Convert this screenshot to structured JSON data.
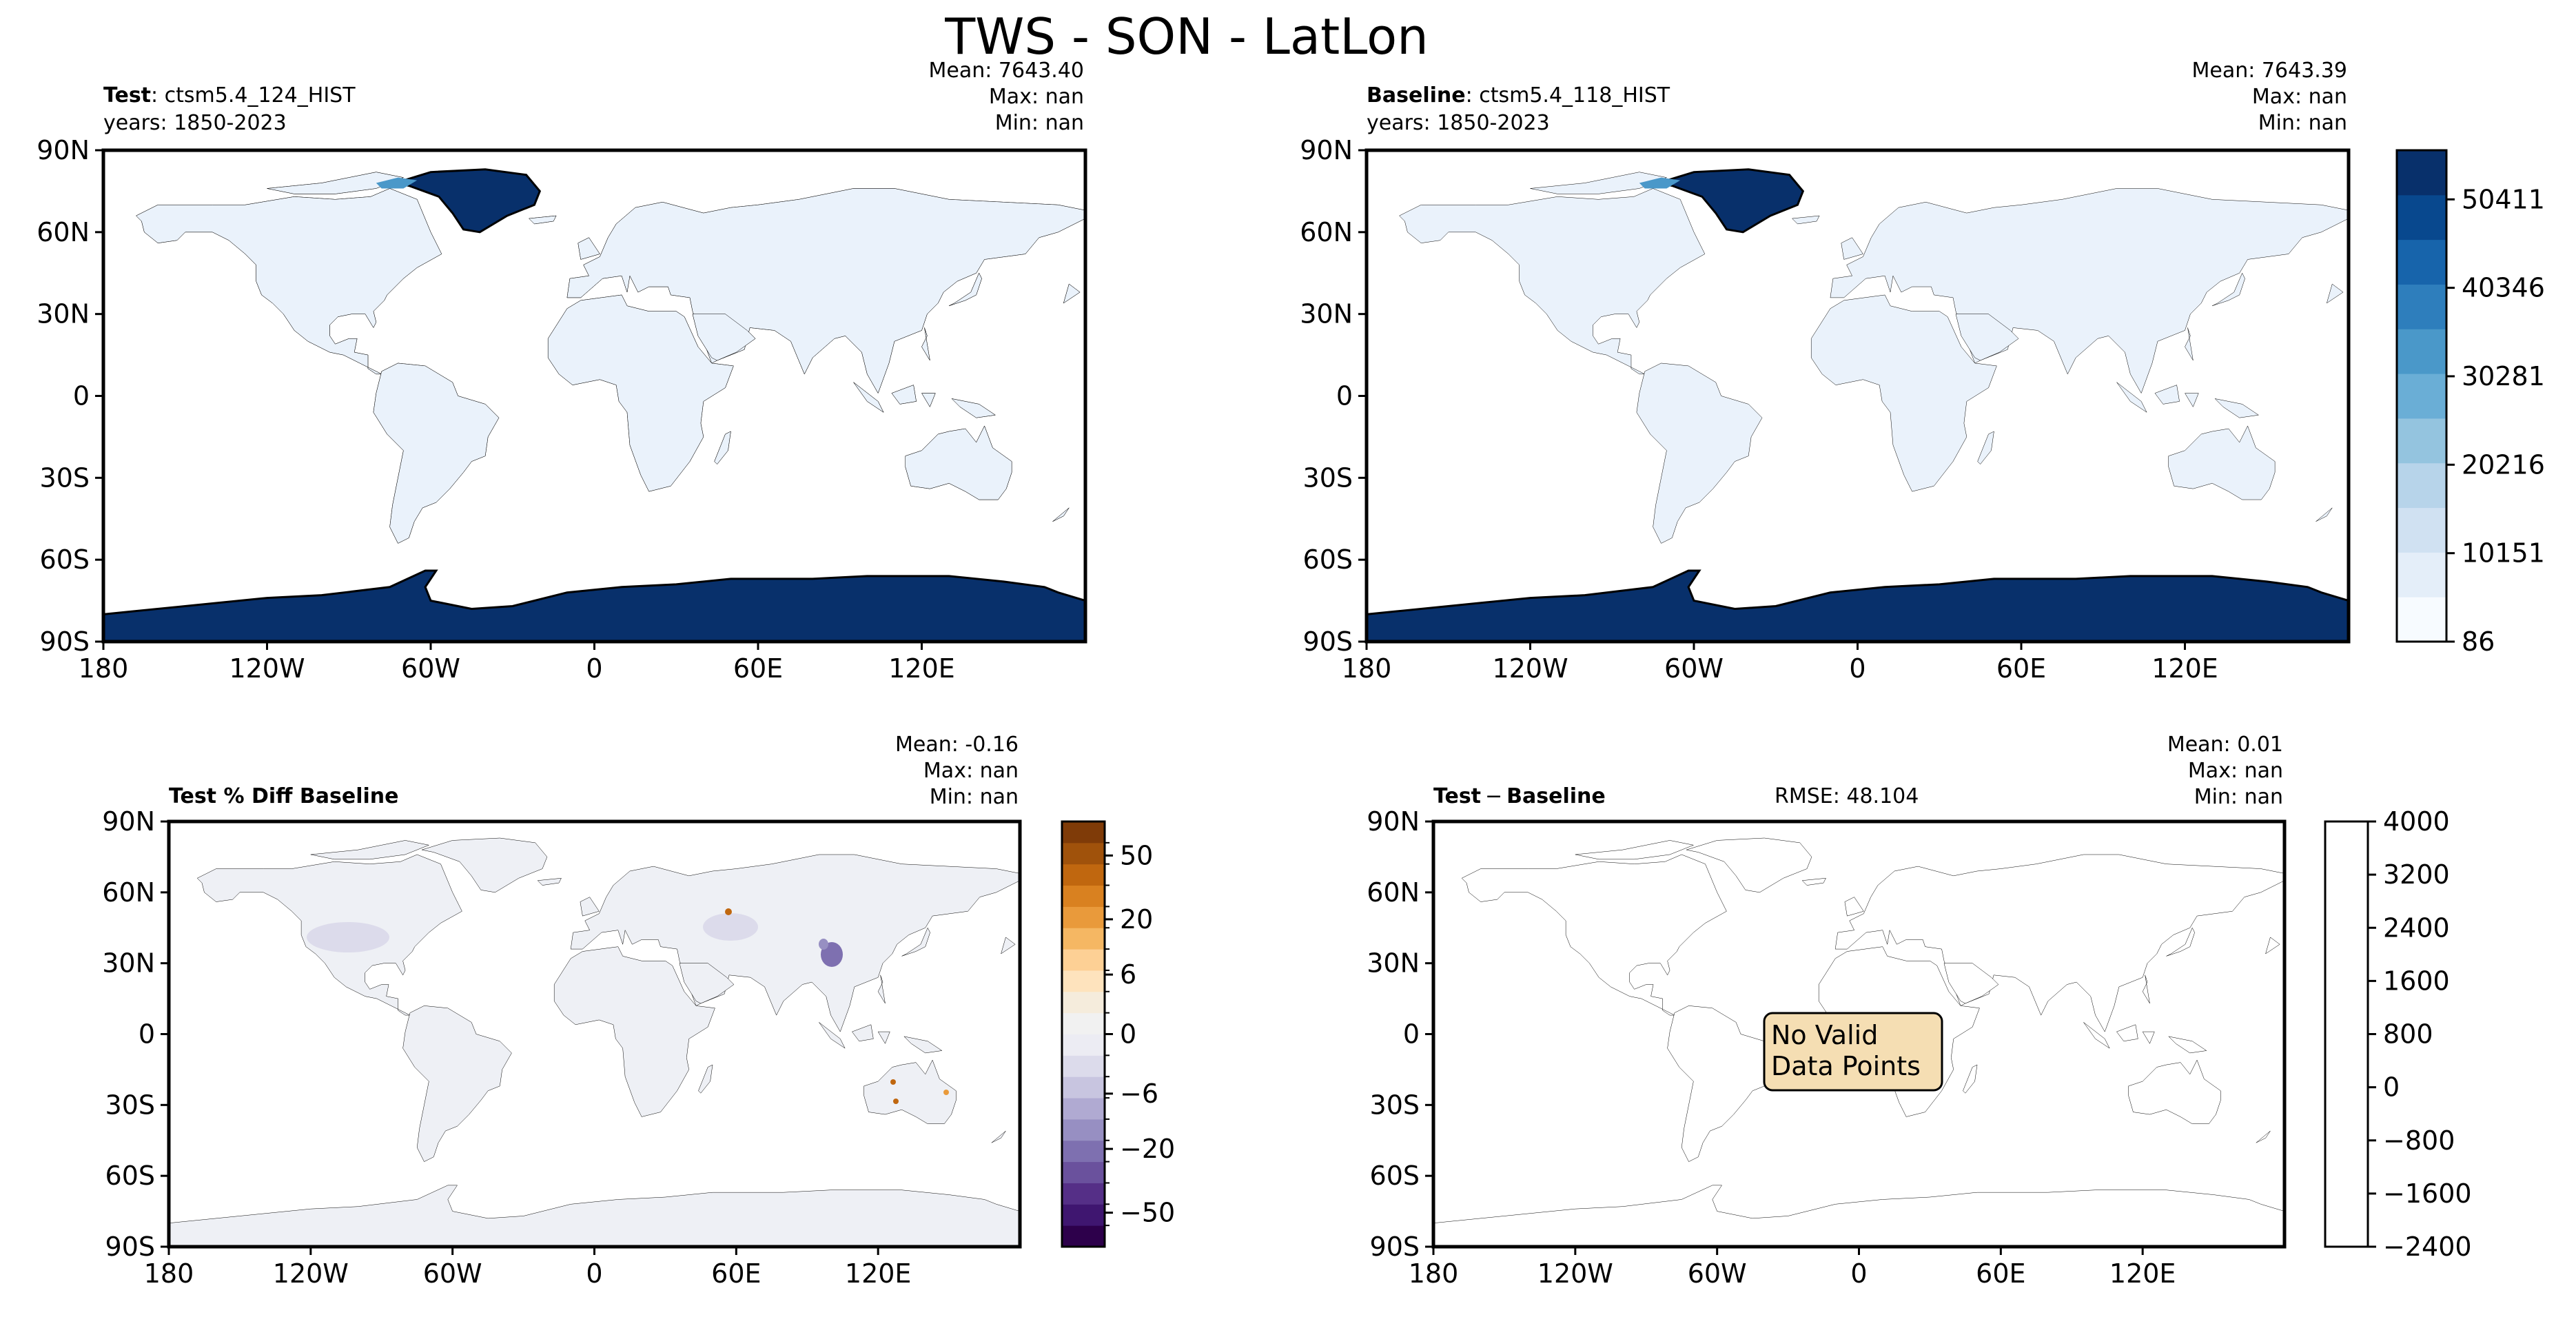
{
  "figure": {
    "title": "TWS - SON - LatLon"
  },
  "map_axes": {
    "lon_ticks": [
      "180",
      "120W",
      "60W",
      "0",
      "60E",
      "120E"
    ],
    "lat_ticks": [
      "90N",
      "60N",
      "30N",
      "0",
      "30S",
      "60S",
      "90S"
    ]
  },
  "colors": {
    "land_blue": "#eaf2fb",
    "ice_blue": "#08306b",
    "diff_land": "#eef0f5",
    "message_box": "#f5deb3"
  },
  "chart_data": [
    {
      "type": "heatmap",
      "panel": "test",
      "label_bold": "Test",
      "label_rest": ": ctsm5.4_124_HIST",
      "years": "years: 1850-2023",
      "stats": {
        "mean": "Mean: 7643.40",
        "max": "Max:   nan",
        "min": "Min:   nan"
      },
      "xlim": [
        -180,
        180
      ],
      "ylim": [
        -90,
        90
      ]
    },
    {
      "type": "heatmap",
      "panel": "baseline",
      "label_bold": "Baseline",
      "label_rest": ": ctsm5.4_118_HIST",
      "years": "years: 1850-2023",
      "stats": {
        "mean": "Mean: 7643.39",
        "max": "Max:   nan",
        "min": "Min:   nan"
      },
      "xlim": [
        -180,
        180
      ],
      "ylim": [
        -90,
        90
      ],
      "colorbar": {
        "tick_labels": [
          "86",
          "10151",
          "20216",
          "30281",
          "40346",
          "50411"
        ],
        "colors": [
          "#f7fbff",
          "#e4eef9",
          "#d0e1f2",
          "#b7d4ea",
          "#94c4df",
          "#6aaed6",
          "#4a98c9",
          "#2e7ebc",
          "#1764ab",
          "#08488e",
          "#08306b"
        ]
      }
    },
    {
      "type": "heatmap",
      "panel": "pct_diff",
      "label_bold": "Test % Diff Baseline",
      "stats": {
        "mean": "Mean: -0.16",
        "max": "Max:   nan",
        "min": "Min:   nan"
      },
      "xlim": [
        -180,
        180
      ],
      "ylim": [
        -90,
        90
      ],
      "colorbar": {
        "tick_labels": [
          "50",
          "20",
          "6",
          "0",
          "−6",
          "−20",
          "−50"
        ],
        "colors": [
          "#7f3b08",
          "#a0520b",
          "#c0670f",
          "#d98120",
          "#e99a3b",
          "#f5b763",
          "#fdd095",
          "#fee3bd",
          "#f5ecdc",
          "#f1f1f1",
          "#ececf3",
          "#dcdbeb",
          "#c8c5e0",
          "#b0aad2",
          "#978fc2",
          "#7e70b0",
          "#6a519d",
          "#552f87",
          "#3f1670",
          "#2d004b"
        ]
      }
    },
    {
      "type": "heatmap",
      "panel": "abs_diff",
      "label_bold": "Test",
      "label_minus": "−",
      "label_bold2": "Baseline",
      "rmse": "RMSE: 48.104",
      "message": [
        "No Valid",
        "Data Points"
      ],
      "stats": {
        "mean": "Mean:  0.01",
        "max": "Max:   nan",
        "min": "Min:   nan"
      },
      "xlim": [
        -180,
        180
      ],
      "ylim": [
        -90,
        90
      ],
      "colorbar": {
        "tick_labels": [
          "4000",
          "3200",
          "2400",
          "1600",
          "800",
          "0",
          "−800",
          "−1600",
          "−2400"
        ]
      }
    }
  ]
}
